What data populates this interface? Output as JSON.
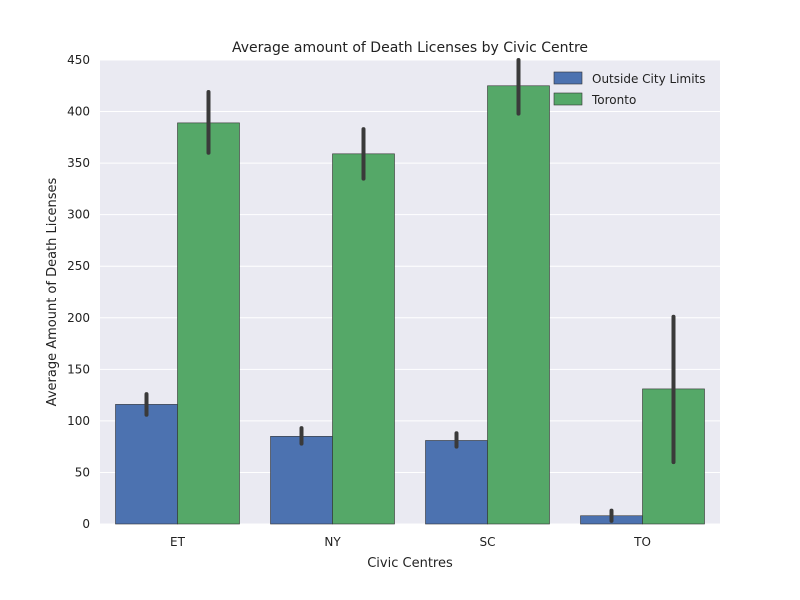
{
  "chart_data": {
    "type": "bar",
    "title": "Average amount of Death Licenses by Civic Centre",
    "xlabel": "Civic Centres",
    "ylabel": "Average Amount of Death Licenses",
    "categories": [
      "ET",
      "NY",
      "SC",
      "TO"
    ],
    "ylim": [
      0,
      450
    ],
    "yticks": [
      "0",
      "50",
      "100",
      "150",
      "200",
      "250",
      "300",
      "350",
      "400",
      "450"
    ],
    "grid": true,
    "legend_position": "top-right",
    "series": [
      {
        "name": "Outside City Limits",
        "color": "#4c72b0",
        "values": [
          116,
          85,
          81,
          8
        ],
        "error_low": [
          106,
          78,
          75,
          3
        ],
        "error_high": [
          126,
          93,
          88,
          13
        ]
      },
      {
        "name": "Toronto",
        "color": "#55a868",
        "values": [
          389,
          359,
          425,
          131
        ],
        "error_low": [
          360,
          335,
          398,
          60
        ],
        "error_high": [
          419,
          383,
          450,
          201
        ]
      }
    ]
  }
}
